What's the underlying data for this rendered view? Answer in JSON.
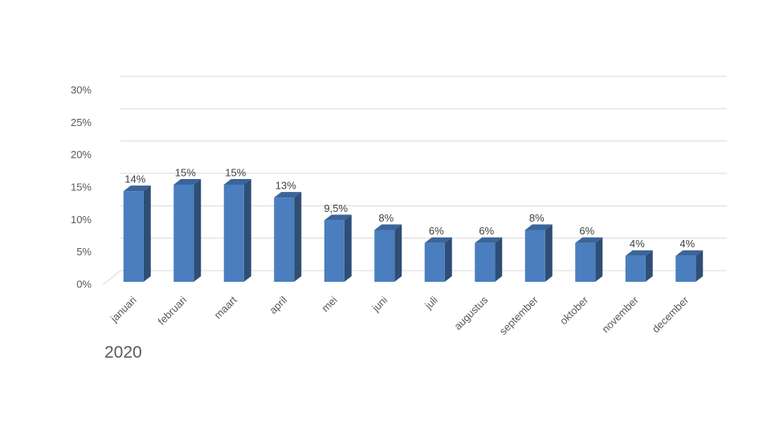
{
  "chart_data": {
    "type": "bar3d",
    "title": "2020",
    "categories": [
      "januari",
      "februari",
      "maart",
      "april",
      "mei",
      "juni",
      "juli",
      "augustus",
      "september",
      "oktober",
      "november",
      "december"
    ],
    "values": [
      14,
      15,
      15,
      13,
      9.5,
      8,
      6,
      6,
      8,
      6,
      4,
      4
    ],
    "value_labels": [
      "14%",
      "15%",
      "15%",
      "13%",
      "9,5%",
      "8%",
      "6%",
      "6%",
      "8%",
      "6%",
      "4%",
      "4%"
    ],
    "color": "#4a7ebf",
    "ylim": [
      0,
      30
    ],
    "yticks": [
      {
        "value": 0,
        "label": "0%"
      },
      {
        "value": 5,
        "label": "5%"
      },
      {
        "value": 10,
        "label": "10%"
      },
      {
        "value": 15,
        "label": "15%"
      },
      {
        "value": 20,
        "label": "20%"
      },
      {
        "value": 25,
        "label": "25%"
      },
      {
        "value": 30,
        "label": "30%"
      }
    ],
    "grid": true
  }
}
